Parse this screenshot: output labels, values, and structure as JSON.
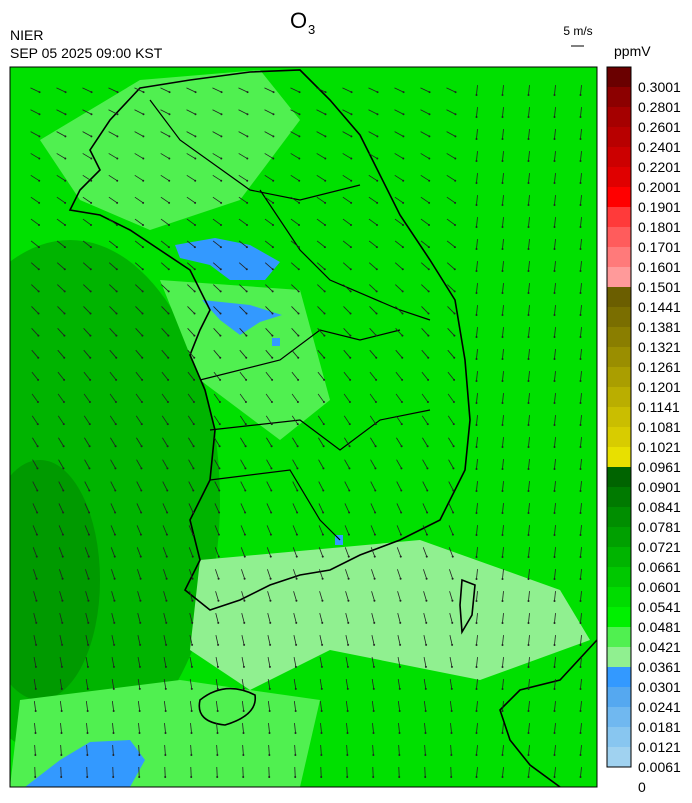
{
  "header": {
    "title": "O",
    "title_sub": "3",
    "source": "NIER",
    "datetime": "SEP 05 2025 09:00 KST",
    "wind_scale": "5 m/s",
    "unit": "ppmV"
  },
  "legend": {
    "labels": [
      0.3001,
      0.2801,
      0.2601,
      0.2401,
      0.2201,
      0.2001,
      0.1901,
      0.1801,
      0.1701,
      0.1601,
      0.1501,
      0.1441,
      0.1381,
      0.1321,
      0.1261,
      0.1201,
      0.1141,
      0.1081,
      0.1021,
      0.0961,
      0.0901,
      0.0841,
      0.0781,
      0.0721,
      0.0661,
      0.0601,
      0.0541,
      0.0481,
      0.0421,
      0.0361,
      0.0301,
      0.0241,
      0.0181,
      0.0121,
      0.0061,
      0
    ],
    "colors": [
      "#6a0000",
      "#8c0000",
      "#a50000",
      "#b80000",
      "#cc0000",
      "#e00000",
      "#ff0000",
      "#ff3a3a",
      "#ff5c5c",
      "#ff7a7a",
      "#ff9a9a",
      "#6b5e00",
      "#7a6e00",
      "#8a7e00",
      "#9a8e00",
      "#aa9e00",
      "#baae00",
      "#cabe00",
      "#d8cc00",
      "#e8e000",
      "#006400",
      "#007a00",
      "#008e00",
      "#00a000",
      "#00b400",
      "#00c800",
      "#00dc00",
      "#00f000",
      "#50f050",
      "#90f090",
      "#3399ff",
      "#55a8f0",
      "#70b8f0",
      "#88c6f0",
      "#a0d2f0"
    ]
  }
}
